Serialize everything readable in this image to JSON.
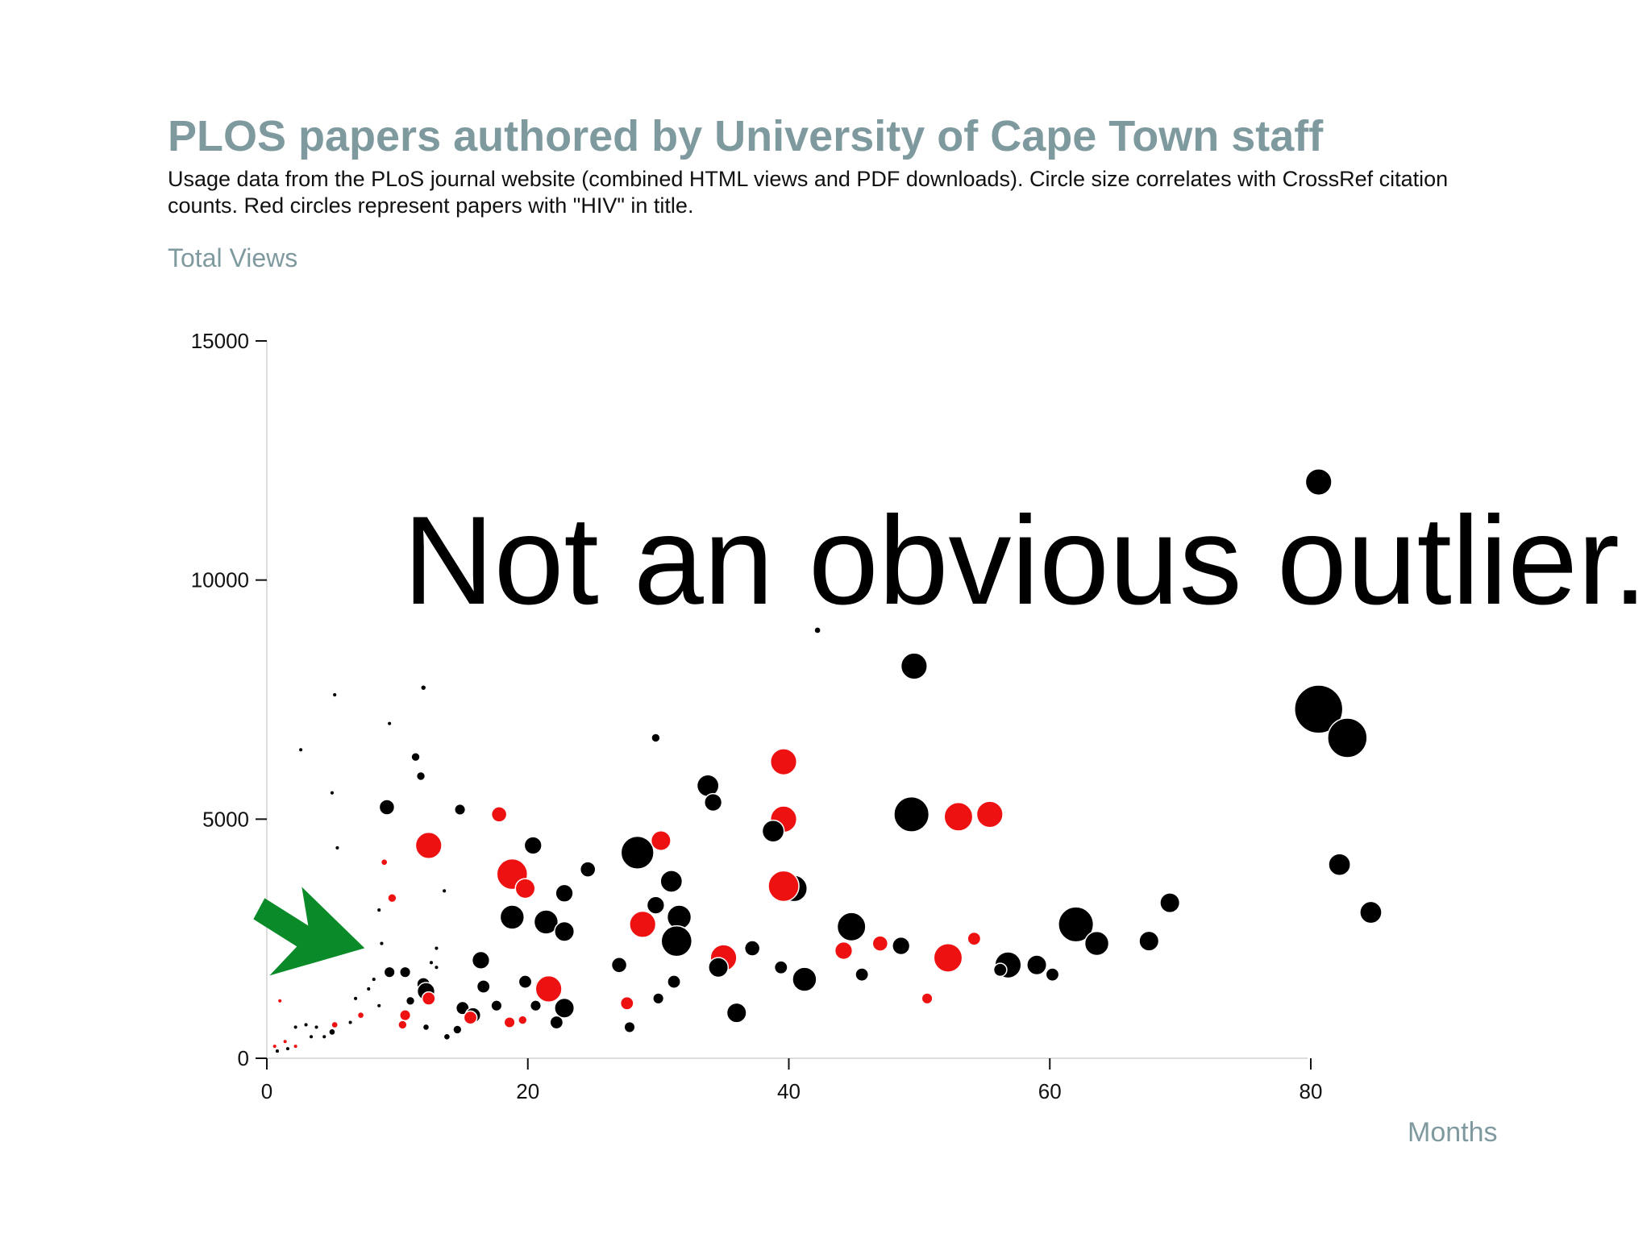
{
  "chart_data": {
    "type": "scatter",
    "title": "PLOS papers authored by University of Cape Town staff",
    "subtitle": "Usage data from the PLoS journal website (combined HTML views and PDF downloads). Circle size correlates with CrossRef citation counts. Red circles represent papers with \"HIV\" in title.",
    "ylabel": "Total Views",
    "xlabel": "Months",
    "xlim": [
      0,
      90
    ],
    "ylim": [
      0,
      15000
    ],
    "x_ticks": [
      0,
      20,
      40,
      60,
      80
    ],
    "y_ticks": [
      0,
      5000,
      10000,
      15000
    ],
    "y_tick_labels": [
      "0",
      "5000",
      "10000",
      "15000"
    ],
    "x_tick_labels": [
      "0",
      "20",
      "40",
      "60",
      "80"
    ],
    "grid": false,
    "size_encoding": "CrossRef citation counts",
    "color_encoding": {
      "hiv": "#ee1111",
      "other": "#000000"
    },
    "annotation": "Not an obvious outlier...",
    "arrow_color": "#0b8a2a",
    "arrow_target": {
      "x": 7,
      "y": 2100
    },
    "points": [
      {
        "x": 80.6,
        "y": 12050,
        "s": 12,
        "hiv": false
      },
      {
        "x": 80.6,
        "y": 7300,
        "s": 22,
        "hiv": false
      },
      {
        "x": 82.8,
        "y": 6700,
        "s": 18,
        "hiv": false
      },
      {
        "x": 82.2,
        "y": 4050,
        "s": 10,
        "hiv": false
      },
      {
        "x": 84.6,
        "y": 3050,
        "s": 10,
        "hiv": false
      },
      {
        "x": 49.6,
        "y": 8200,
        "s": 12,
        "hiv": false
      },
      {
        "x": 49.4,
        "y": 5100,
        "s": 16,
        "hiv": false
      },
      {
        "x": 53.0,
        "y": 5050,
        "s": 13,
        "hiv": true
      },
      {
        "x": 55.4,
        "y": 5100,
        "s": 12,
        "hiv": true
      },
      {
        "x": 42.2,
        "y": 8950,
        "s": 3,
        "hiv": false
      },
      {
        "x": 39.6,
        "y": 6200,
        "s": 12,
        "hiv": true
      },
      {
        "x": 39.6,
        "y": 5000,
        "s": 12,
        "hiv": true
      },
      {
        "x": 38.8,
        "y": 4750,
        "s": 10,
        "hiv": false
      },
      {
        "x": 40.4,
        "y": 3550,
        "s": 12,
        "hiv": false
      },
      {
        "x": 39.6,
        "y": 3600,
        "s": 14,
        "hiv": true
      },
      {
        "x": 29.8,
        "y": 6700,
        "s": 4,
        "hiv": false
      },
      {
        "x": 33.8,
        "y": 5700,
        "s": 10,
        "hiv": false
      },
      {
        "x": 34.2,
        "y": 5350,
        "s": 8,
        "hiv": false
      },
      {
        "x": 28.4,
        "y": 4300,
        "s": 15,
        "hiv": false
      },
      {
        "x": 30.2,
        "y": 4550,
        "s": 9,
        "hiv": true
      },
      {
        "x": 31.0,
        "y": 3700,
        "s": 10,
        "hiv": false
      },
      {
        "x": 29.8,
        "y": 3200,
        "s": 8,
        "hiv": false
      },
      {
        "x": 31.6,
        "y": 2950,
        "s": 11,
        "hiv": false
      },
      {
        "x": 28.8,
        "y": 2800,
        "s": 12,
        "hiv": true
      },
      {
        "x": 31.4,
        "y": 2450,
        "s": 14,
        "hiv": false
      },
      {
        "x": 35.0,
        "y": 2100,
        "s": 12,
        "hiv": true
      },
      {
        "x": 34.6,
        "y": 1900,
        "s": 9,
        "hiv": false
      },
      {
        "x": 37.2,
        "y": 2300,
        "s": 7,
        "hiv": false
      },
      {
        "x": 39.4,
        "y": 1900,
        "s": 6,
        "hiv": false
      },
      {
        "x": 41.2,
        "y": 1650,
        "s": 11,
        "hiv": false
      },
      {
        "x": 44.8,
        "y": 2750,
        "s": 13,
        "hiv": false
      },
      {
        "x": 44.2,
        "y": 2250,
        "s": 8,
        "hiv": true
      },
      {
        "x": 45.6,
        "y": 1750,
        "s": 6,
        "hiv": false
      },
      {
        "x": 47.0,
        "y": 2400,
        "s": 7,
        "hiv": true
      },
      {
        "x": 48.6,
        "y": 2350,
        "s": 8,
        "hiv": false
      },
      {
        "x": 52.2,
        "y": 2100,
        "s": 13,
        "hiv": true
      },
      {
        "x": 54.2,
        "y": 2500,
        "s": 6,
        "hiv": true
      },
      {
        "x": 50.6,
        "y": 1250,
        "s": 5,
        "hiv": true
      },
      {
        "x": 56.8,
        "y": 1950,
        "s": 12,
        "hiv": false
      },
      {
        "x": 56.2,
        "y": 1850,
        "s": 6,
        "hiv": false
      },
      {
        "x": 59.0,
        "y": 1950,
        "s": 9,
        "hiv": false
      },
      {
        "x": 60.2,
        "y": 1750,
        "s": 6,
        "hiv": false
      },
      {
        "x": 62.0,
        "y": 2800,
        "s": 16,
        "hiv": false
      },
      {
        "x": 63.6,
        "y": 2400,
        "s": 11,
        "hiv": false
      },
      {
        "x": 67.6,
        "y": 2450,
        "s": 9,
        "hiv": false
      },
      {
        "x": 69.2,
        "y": 3250,
        "s": 9,
        "hiv": false
      },
      {
        "x": 36.0,
        "y": 950,
        "s": 9,
        "hiv": false
      },
      {
        "x": 27.0,
        "y": 1950,
        "s": 7,
        "hiv": false
      },
      {
        "x": 27.6,
        "y": 1150,
        "s": 6,
        "hiv": true
      },
      {
        "x": 27.8,
        "y": 650,
        "s": 5,
        "hiv": false
      },
      {
        "x": 30.0,
        "y": 1250,
        "s": 5,
        "hiv": false
      },
      {
        "x": 31.2,
        "y": 1600,
        "s": 6,
        "hiv": false
      },
      {
        "x": 20.4,
        "y": 4450,
        "s": 8,
        "hiv": false
      },
      {
        "x": 18.8,
        "y": 3850,
        "s": 14,
        "hiv": true
      },
      {
        "x": 19.8,
        "y": 3550,
        "s": 9,
        "hiv": true
      },
      {
        "x": 22.8,
        "y": 3450,
        "s": 8,
        "hiv": false
      },
      {
        "x": 24.6,
        "y": 3950,
        "s": 7,
        "hiv": false
      },
      {
        "x": 18.8,
        "y": 2950,
        "s": 11,
        "hiv": false
      },
      {
        "x": 21.4,
        "y": 2850,
        "s": 11,
        "hiv": false
      },
      {
        "x": 22.8,
        "y": 2650,
        "s": 9,
        "hiv": false
      },
      {
        "x": 17.8,
        "y": 5100,
        "s": 7,
        "hiv": true
      },
      {
        "x": 16.4,
        "y": 2050,
        "s": 8,
        "hiv": false
      },
      {
        "x": 16.6,
        "y": 1500,
        "s": 6,
        "hiv": false
      },
      {
        "x": 19.8,
        "y": 1600,
        "s": 6,
        "hiv": false
      },
      {
        "x": 21.2,
        "y": 1500,
        "s": 8,
        "hiv": true
      },
      {
        "x": 21.6,
        "y": 1450,
        "s": 12,
        "hiv": true
      },
      {
        "x": 22.8,
        "y": 1050,
        "s": 9,
        "hiv": false
      },
      {
        "x": 22.2,
        "y": 750,
        "s": 6,
        "hiv": false
      },
      {
        "x": 19.6,
        "y": 800,
        "s": 4,
        "hiv": true
      },
      {
        "x": 18.6,
        "y": 750,
        "s": 5,
        "hiv": true
      },
      {
        "x": 20.6,
        "y": 1100,
        "s": 5,
        "hiv": false
      },
      {
        "x": 17.6,
        "y": 1100,
        "s": 5,
        "hiv": false
      },
      {
        "x": 15.0,
        "y": 1050,
        "s": 6,
        "hiv": false
      },
      {
        "x": 15.8,
        "y": 900,
        "s": 7,
        "hiv": false
      },
      {
        "x": 15.6,
        "y": 850,
        "s": 6,
        "hiv": true
      },
      {
        "x": 14.6,
        "y": 600,
        "s": 4,
        "hiv": false
      },
      {
        "x": 12.4,
        "y": 4450,
        "s": 12,
        "hiv": true
      },
      {
        "x": 14.8,
        "y": 5200,
        "s": 5,
        "hiv": false
      },
      {
        "x": 9.2,
        "y": 5250,
        "s": 7,
        "hiv": false
      },
      {
        "x": 11.4,
        "y": 6300,
        "s": 4,
        "hiv": false
      },
      {
        "x": 11.8,
        "y": 5900,
        "s": 4,
        "hiv": false
      },
      {
        "x": 12.0,
        "y": 7750,
        "s": 2,
        "hiv": false
      },
      {
        "x": 9.0,
        "y": 4100,
        "s": 3,
        "hiv": true
      },
      {
        "x": 9.6,
        "y": 3350,
        "s": 4,
        "hiv": true
      },
      {
        "x": 12.0,
        "y": 1550,
        "s": 6,
        "hiv": false
      },
      {
        "x": 12.2,
        "y": 1400,
        "s": 8,
        "hiv": false
      },
      {
        "x": 12.4,
        "y": 1250,
        "s": 6,
        "hiv": true
      },
      {
        "x": 10.6,
        "y": 1800,
        "s": 5,
        "hiv": false
      },
      {
        "x": 9.4,
        "y": 1800,
        "s": 5,
        "hiv": false
      },
      {
        "x": 11.0,
        "y": 1200,
        "s": 4,
        "hiv": false
      },
      {
        "x": 10.6,
        "y": 900,
        "s": 5,
        "hiv": true
      },
      {
        "x": 10.4,
        "y": 700,
        "s": 4,
        "hiv": true
      },
      {
        "x": 12.2,
        "y": 650,
        "s": 3,
        "hiv": false
      },
      {
        "x": 13.8,
        "y": 450,
        "s": 3,
        "hiv": false
      },
      {
        "x": 7.2,
        "y": 900,
        "s": 3,
        "hiv": true
      },
      {
        "x": 5.0,
        "y": 550,
        "s": 3,
        "hiv": false
      },
      {
        "x": 5.2,
        "y": 700,
        "s": 3,
        "hiv": true
      },
      {
        "x": 2.6,
        "y": 6450,
        "s": 1.5,
        "hiv": false
      },
      {
        "x": 5.2,
        "y": 7600,
        "s": 1.5,
        "hiv": false
      },
      {
        "x": 9.4,
        "y": 7000,
        "s": 1.5,
        "hiv": false
      },
      {
        "x": 5.0,
        "y": 5550,
        "s": 1.5,
        "hiv": false
      },
      {
        "x": 5.4,
        "y": 4400,
        "s": 1.5,
        "hiv": false
      },
      {
        "x": 8.6,
        "y": 3100,
        "s": 1.5,
        "hiv": false
      },
      {
        "x": 8.8,
        "y": 2400,
        "s": 1.5,
        "hiv": false
      },
      {
        "x": 12.6,
        "y": 2000,
        "s": 1.5,
        "hiv": false
      },
      {
        "x": 1.0,
        "y": 1200,
        "s": 1.5,
        "hiv": true
      },
      {
        "x": 2.2,
        "y": 650,
        "s": 1.5,
        "hiv": false
      },
      {
        "x": 3.0,
        "y": 700,
        "s": 1.5,
        "hiv": false
      },
      {
        "x": 3.8,
        "y": 650,
        "s": 1.5,
        "hiv": false
      },
      {
        "x": 4.4,
        "y": 450,
        "s": 1.5,
        "hiv": false
      },
      {
        "x": 1.4,
        "y": 350,
        "s": 1.5,
        "hiv": true
      },
      {
        "x": 0.6,
        "y": 250,
        "s": 1.5,
        "hiv": true
      },
      {
        "x": 1.6,
        "y": 200,
        "s": 1.5,
        "hiv": false
      },
      {
        "x": 2.2,
        "y": 250,
        "s": 1.5,
        "hiv": true
      },
      {
        "x": 0.8,
        "y": 150,
        "s": 1.5,
        "hiv": false
      },
      {
        "x": 6.4,
        "y": 750,
        "s": 1.5,
        "hiv": false
      },
      {
        "x": 7.8,
        "y": 1450,
        "s": 1.5,
        "hiv": false
      },
      {
        "x": 6.8,
        "y": 1250,
        "s": 1.5,
        "hiv": false
      },
      {
        "x": 8.2,
        "y": 1650,
        "s": 1.5,
        "hiv": false
      },
      {
        "x": 8.6,
        "y": 1100,
        "s": 1.5,
        "hiv": false
      },
      {
        "x": 13.0,
        "y": 1900,
        "s": 1.5,
        "hiv": false
      },
      {
        "x": 13.6,
        "y": 3500,
        "s": 1.5,
        "hiv": false
      },
      {
        "x": 13.0,
        "y": 2300,
        "s": 1.5,
        "hiv": false
      },
      {
        "x": 3.4,
        "y": 450,
        "s": 1.5,
        "hiv": false
      }
    ]
  }
}
